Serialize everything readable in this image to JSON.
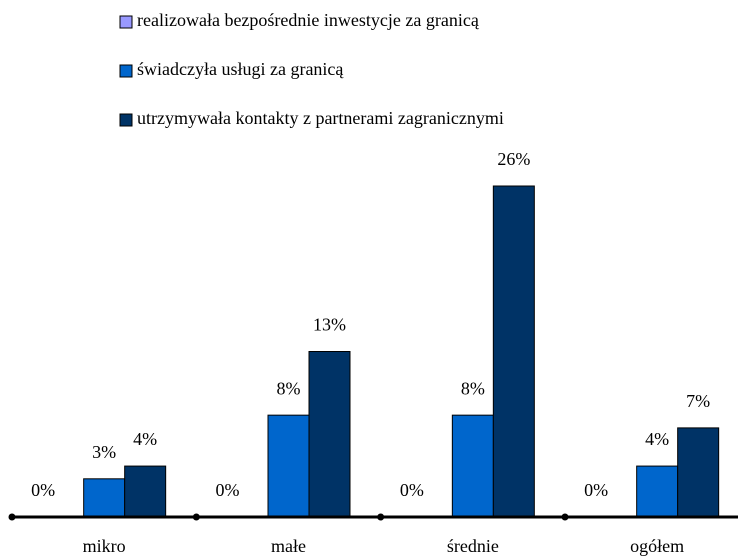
{
  "chart_data": {
    "type": "bar",
    "categories": [
      "mikro",
      "małe",
      "średnie",
      "ogółem"
    ],
    "series": [
      {
        "name": "realizowała bezpośrednie inwestycje za granicą",
        "color": "#9999ff",
        "values": [
          0,
          0,
          0,
          0
        ],
        "value_labels": [
          "0%",
          "0%",
          "0%",
          "0%"
        ]
      },
      {
        "name": "świadczyła usługi za granicą",
        "color": "#0066cc",
        "values": [
          3,
          8,
          8,
          4
        ],
        "value_labels": [
          "3%",
          "8%",
          "8%",
          "4%"
        ]
      },
      {
        "name": "utrzymywała kontakty z partnerami zagranicznymi",
        "color": "#003366",
        "values": [
          4,
          13,
          26,
          7
        ],
        "value_labels": [
          "4%",
          "13%",
          "26%",
          "7%"
        ]
      }
    ],
    "legend": "top"
  }
}
